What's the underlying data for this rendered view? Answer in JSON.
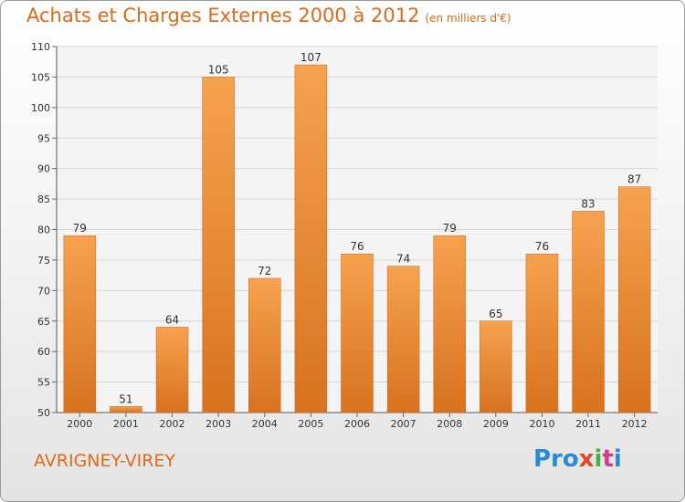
{
  "header": {
    "title": "Achats et Charges Externes 2000 à 2012",
    "unit": "(en milliers d'€)"
  },
  "footer": {
    "city": "AVRIGNEY-VIREY",
    "logo": [
      "Pro",
      "x",
      "i",
      "t",
      "i"
    ]
  },
  "colors": {
    "accent": "#e06a1a",
    "bar_top": "#f6a24f",
    "bar_bottom": "#d8721f",
    "grid": "#d6d6d6"
  },
  "chart_data": {
    "type": "bar",
    "title": "Achats et Charges Externes 2000 à 2012",
    "subtitle": "(en milliers d'€)",
    "xlabel": "",
    "ylabel": "",
    "categories": [
      "2000",
      "2001",
      "2002",
      "2003",
      "2004",
      "2005",
      "2006",
      "2007",
      "2008",
      "2009",
      "2010",
      "2011",
      "2012"
    ],
    "values": [
      79,
      51,
      64,
      105,
      72,
      107,
      76,
      74,
      79,
      65,
      76,
      83,
      87
    ],
    "ylim": [
      50,
      110
    ],
    "yticks": [
      50,
      55,
      60,
      65,
      70,
      75,
      80,
      85,
      90,
      95,
      100,
      105,
      110
    ],
    "grid": true,
    "legend": "none"
  }
}
